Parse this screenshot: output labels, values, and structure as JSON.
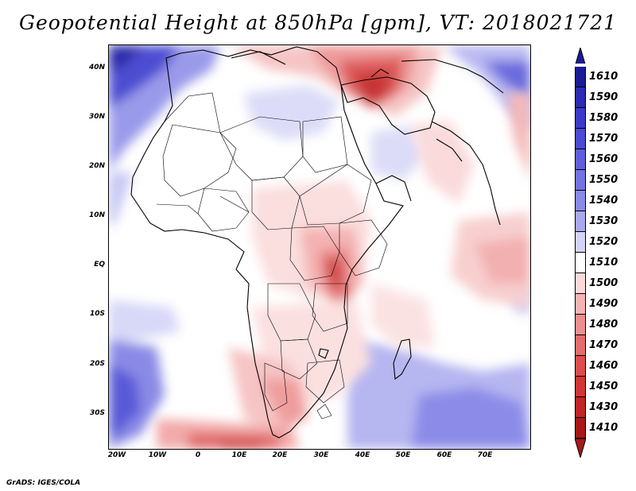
{
  "title": "Geopotential Height at 850hPa [gpm], VT: 2018021721",
  "credit": "GrADS: IGES/COLA",
  "lat_labels": [
    "40N",
    "30N",
    "20N",
    "10N",
    "EQ",
    "10S",
    "20S",
    "30S"
  ],
  "lon_labels": [
    "20W",
    "10W",
    "0",
    "10E",
    "20E",
    "30E",
    "40E",
    "50E",
    "60E",
    "70E"
  ],
  "colorbar": {
    "values": [
      "1610",
      "1590",
      "1580",
      "1570",
      "1560",
      "1550",
      "1540",
      "1530",
      "1520",
      "1510",
      "1500",
      "1490",
      "1480",
      "1470",
      "1460",
      "1450",
      "1430",
      "1410"
    ],
    "colors": [
      "#1b1b96",
      "#2b2bb3",
      "#3a3ac8",
      "#4b4bd4",
      "#5f5fdc",
      "#7373e2",
      "#8a8ae8",
      "#a9a9f0",
      "#d4d4f8",
      "#ffffff",
      "#fbd9d9",
      "#f4b4b4",
      "#ec8f8f",
      "#e46c6c",
      "#dc4d4d",
      "#d23535",
      "#c12525",
      "#a81818"
    ],
    "top_tip_color": "#1b1b96",
    "bottom_tip_color": "#a81818"
  }
}
